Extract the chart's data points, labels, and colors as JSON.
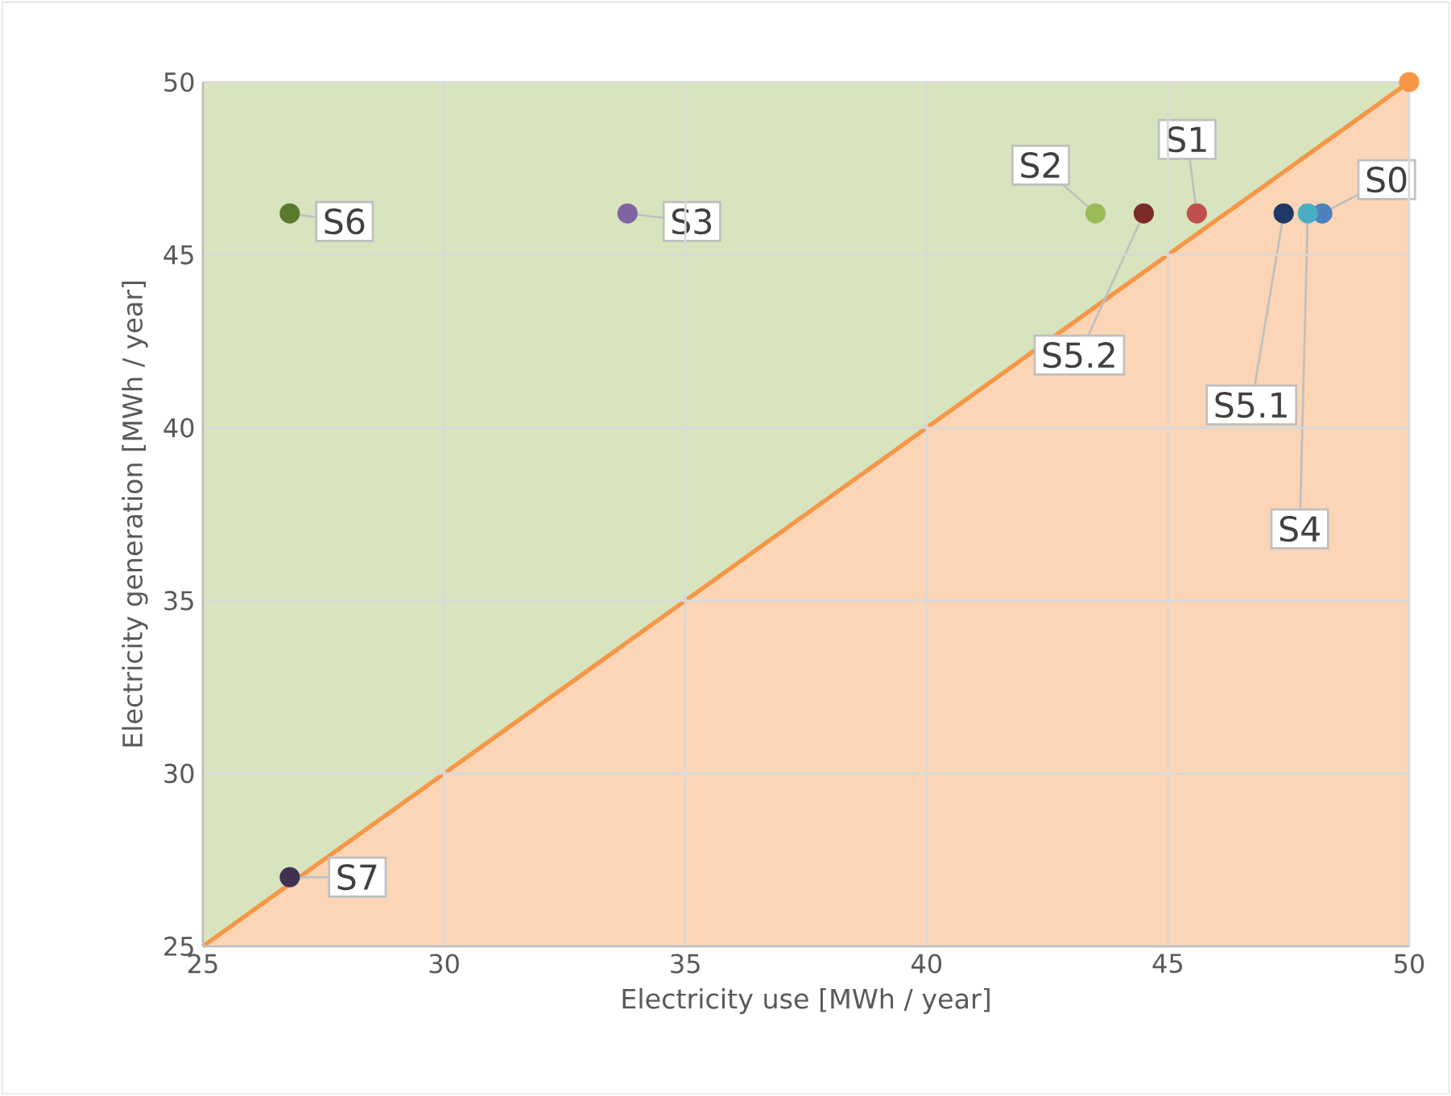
{
  "chart_data": {
    "type": "scatter",
    "xlabel": "Electricity use [MWh / year]",
    "ylabel": "Electricity generation [MWh / year]",
    "xlim": [
      25,
      50
    ],
    "ylim": [
      25,
      50
    ],
    "xticks": [
      25,
      30,
      35,
      40,
      45,
      50
    ],
    "yticks": [
      25,
      30,
      35,
      40,
      45,
      50
    ],
    "grid": true,
    "series": [
      {
        "type": "line",
        "marker": "none",
        "color": "#f79646",
        "x": [
          25,
          50
        ],
        "values": [
          25,
          50
        ]
      },
      {
        "marker": "circle",
        "color": "#f79646",
        "x": [
          50
        ],
        "values": [
          50
        ]
      },
      {
        "marker": "circle",
        "name": "S0",
        "color": "#4f81bd",
        "x": [
          48.2
        ],
        "values": [
          46.2
        ]
      },
      {
        "marker": "circle",
        "name": "S1",
        "color": "#c0504d",
        "x": [
          45.6
        ],
        "values": [
          46.2
        ]
      },
      {
        "marker": "circle",
        "name": "S2",
        "color": "#9bbb59",
        "x": [
          43.5
        ],
        "values": [
          46.2
        ]
      },
      {
        "marker": "circle",
        "name": "S3",
        "color": "#8064a2",
        "x": [
          33.8
        ],
        "values": [
          46.2
        ]
      },
      {
        "marker": "circle",
        "name": "S4",
        "color": "#4bacc6",
        "x": [
          47.9
        ],
        "values": [
          46.2
        ]
      },
      {
        "marker": "circle",
        "name": "S5.1",
        "color": "#1f3864",
        "x": [
          47.4
        ],
        "values": [
          46.2
        ]
      },
      {
        "marker": "circle",
        "name": "S5.2",
        "color": "#7b2a2a",
        "x": [
          44.5
        ],
        "values": [
          46.2
        ]
      },
      {
        "marker": "circle",
        "name": "S6",
        "color": "#5a7a2e",
        "x": [
          26.8
        ],
        "values": [
          46.2
        ]
      },
      {
        "marker": "circle",
        "name": "S7",
        "color": "#403152",
        "x": [
          26.8
        ],
        "values": [
          27.0
        ]
      }
    ]
  }
}
